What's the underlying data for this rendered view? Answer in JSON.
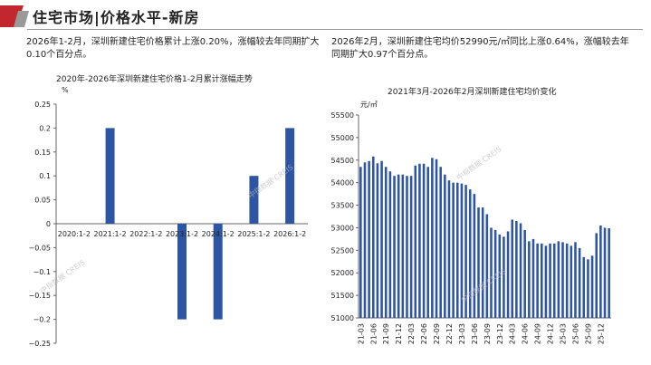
{
  "header": {
    "title": "住宅市场|价格水平-新房"
  },
  "left": {
    "description": "2026年1-2月，深圳新建住宅价格累计上涨0.20%，涨幅较去年同期扩大0.10个百分点。"
  },
  "right": {
    "description": "2026年2月，深圳新建住宅均价52990元/㎡同比上涨0.64%，涨幅较去年同期扩大0.97个百分点。"
  },
  "watermark": "中指数据 CREIS",
  "colors": {
    "bar": "#2e55a4",
    "logo_red": "#c0282d",
    "logo_gray": "#9a9a9a"
  },
  "chart_data": [
    {
      "type": "bar",
      "title": "2020年-2026年深圳新建住宅价格1-2月累计涨幅走势",
      "ylabel": "%",
      "categories": [
        "2020:1-2",
        "2021:1-2",
        "2022:1-2",
        "2023:1-2",
        "2024:1-2",
        "2025:1-2",
        "2026:1-2"
      ],
      "values": [
        0,
        0.2,
        0,
        -0.2,
        -0.2,
        0.1,
        0.2
      ],
      "ylim": [
        -0.25,
        0.25
      ],
      "yticks": [
        "0.25",
        "0.2",
        "0.15",
        "0.1",
        "0.05",
        "0",
        "−0.05",
        "−0.1",
        "−0.15",
        "−0.2",
        "−0.25"
      ],
      "grid": false
    },
    {
      "type": "bar",
      "title": "2021年3月-2026年2月深圳新建住宅均价变化",
      "ylabel": "元/㎡",
      "ylim": [
        51000,
        55500
      ],
      "yticks": [
        "55500",
        "55000",
        "54500",
        "54000",
        "53500",
        "53000",
        "52500",
        "52000",
        "51500",
        "51000"
      ],
      "xticks": [
        "21-03",
        "21-06",
        "21-09",
        "21-12",
        "22-03",
        "22-06",
        "22-09",
        "22-12",
        "23-03",
        "23-06",
        "23-09",
        "23-12",
        "24-03",
        "24-06",
        "24-09",
        "24-12",
        "25-03",
        "25-06",
        "25-09",
        "25-12"
      ],
      "categories": [
        "21-03",
        "21-04",
        "21-05",
        "21-06",
        "21-07",
        "21-08",
        "21-09",
        "21-10",
        "21-11",
        "21-12",
        "22-01",
        "22-02",
        "22-03",
        "22-04",
        "22-05",
        "22-06",
        "22-07",
        "22-08",
        "22-09",
        "22-10",
        "22-11",
        "22-12",
        "23-01",
        "23-02",
        "23-03",
        "23-04",
        "23-05",
        "23-06",
        "23-07",
        "23-08",
        "23-09",
        "23-10",
        "23-11",
        "23-12",
        "24-01",
        "24-02",
        "24-03",
        "24-04",
        "24-05",
        "24-06",
        "24-07",
        "24-08",
        "24-09",
        "24-10",
        "24-11",
        "24-12",
        "25-01",
        "25-02",
        "25-03",
        "25-04",
        "25-05",
        "25-06",
        "25-07",
        "25-08",
        "25-09",
        "25-10",
        "25-11",
        "25-12",
        "26-01",
        "26-02"
      ],
      "values": [
        54350,
        54450,
        54480,
        54580,
        54430,
        54480,
        54350,
        54250,
        54150,
        54180,
        54180,
        54150,
        54150,
        54380,
        54420,
        54420,
        54350,
        54550,
        54520,
        54350,
        54180,
        54050,
        54000,
        54000,
        53980,
        53950,
        53850,
        53750,
        53450,
        53450,
        53300,
        53000,
        52950,
        52850,
        52800,
        52920,
        53180,
        53150,
        53100,
        52950,
        52700,
        52750,
        52650,
        52650,
        52600,
        52650,
        52650,
        52700,
        52680,
        52650,
        52600,
        52680,
        52550,
        52350,
        52300,
        52380,
        52880,
        53050,
        53000,
        52990
      ],
      "grid": false
    }
  ]
}
